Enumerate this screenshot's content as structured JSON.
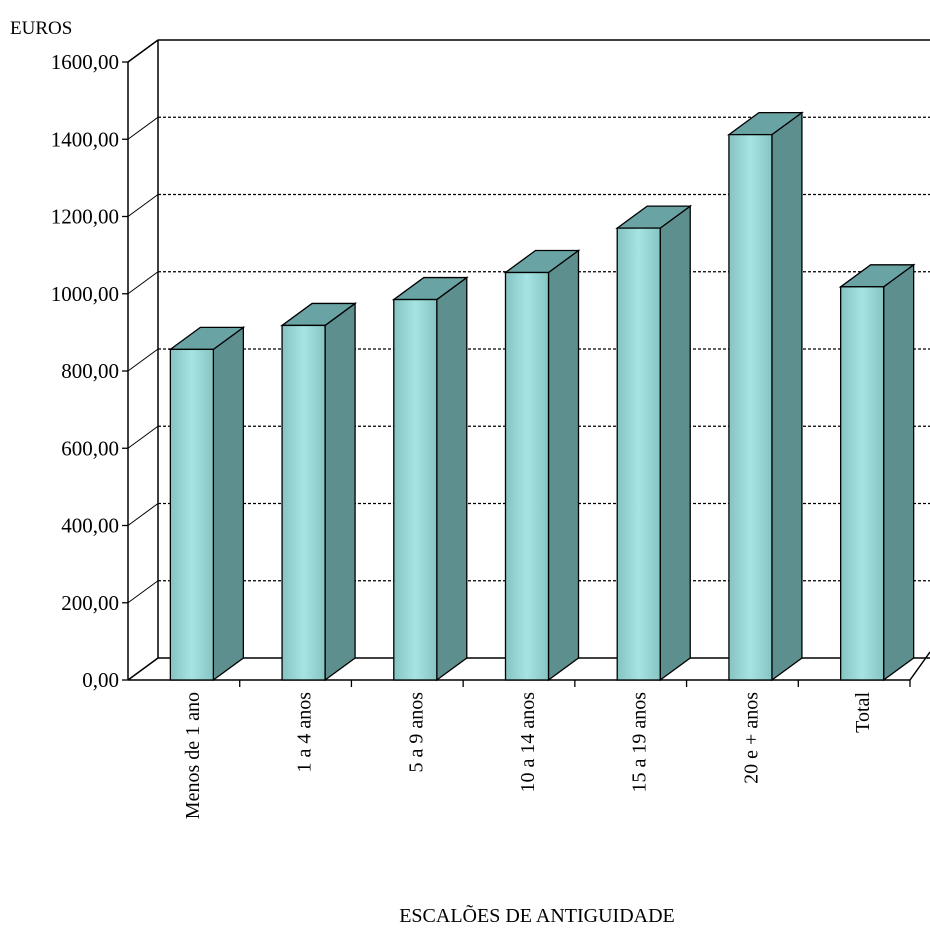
{
  "chart_data": {
    "type": "bar",
    "title": "",
    "ylabel": "EUROS",
    "xlabel": "ESCALÕES DE ANTIGUIDADE",
    "categories": [
      "Menos de 1 ano",
      "1 a 4 anos",
      "5 a 9 anos",
      "10 a 14 anos",
      "15 a 19 anos",
      "20 e + anos",
      "Total"
    ],
    "values": [
      856,
      918,
      985,
      1055,
      1170,
      1412,
      1018
    ],
    "ylim": [
      0,
      1600
    ],
    "yticks": [
      "0,00",
      "200,00",
      "400,00",
      "600,00",
      "800,00",
      "1000,00",
      "1200,00",
      "1400,00",
      "1600,00"
    ],
    "grid": true,
    "grid_style": "dashed",
    "three_d": true,
    "colors": {
      "bar_front_edge": "#86c3c3",
      "bar_front_center": "#a6e4e4",
      "bar_side": "#5e8f8f",
      "bar_top": "#6aa3a3",
      "grid": "#000000"
    }
  }
}
